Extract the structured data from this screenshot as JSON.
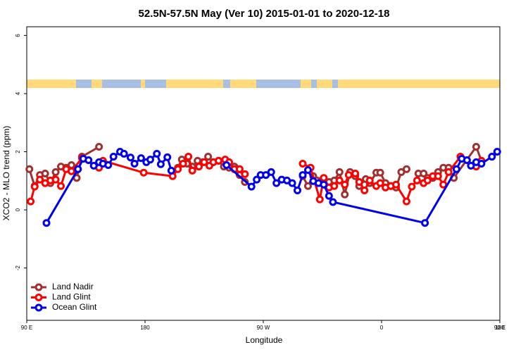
{
  "chart_data": {
    "type": "line",
    "title": "52.5N-57.5N May (Ver 10)   2015-01-01 to 2020-12-18",
    "xlabel": "Longitude",
    "ylabel": "XCO2 - MLO trend (ppm)",
    "xlim": [
      90,
      450
    ],
    "ylim": [
      -3.8,
      6.3
    ],
    "xticks": [
      {
        "value": 90,
        "label": "90 E"
      },
      180,
      {
        "value": 270,
        "label": "90 W"
      },
      {
        "value": 360,
        "label": "0"
      },
      {
        "value": 450,
        "label": "90 E"
      },
      {
        "value": 540,
        "label": "180"
      }
    ],
    "yticks": [
      -2,
      0,
      2,
      4,
      6
    ],
    "legend": "bottom-left",
    "series": [
      {
        "name": "Land Nadir",
        "color": "#a03030",
        "x": [
          92,
          96,
          100,
          104,
          108,
          112,
          116,
          120,
          124,
          128,
          132,
          145,
          175,
          205,
          208,
          212,
          216,
          220,
          224,
          228,
          232,
          236,
          240,
          244,
          248,
          252,
          256,
          280,
          300,
          304,
          308,
          320,
          324,
          328,
          332,
          336,
          340,
          343,
          348,
          351,
          356,
          359,
          363,
          367,
          371,
          375,
          379,
          384,
          388,
          392,
          395,
          399,
          403,
          407,
          411,
          415,
          432,
          436
        ],
        "values": [
          1.4,
          0.82,
          1.2,
          1.25,
          0.92,
          1.3,
          1.49,
          1.45,
          1.54,
          1.1,
          1.83,
          2.17,
          null,
          1.45,
          1.73,
          1.59,
          1.49,
          1.69,
          1.64,
          1.83,
          1.64,
          1.69,
          1.49,
          1.45,
          1.49,
          1.2,
          0.96,
          null,
          1.16,
          0.82,
          1.16,
          0.96,
          1.01,
          1.3,
          0.53,
          1.3,
          1.16,
          0.82,
          1.06,
          0.92,
          1.28,
          1.28,
          0.92,
          0.82,
          0.77,
          1.3,
          1.4,
          null,
          1.25,
          1.25,
          1.1,
          1.1,
          1.3,
          1.45,
          1.45,
          1.1,
          2.17,
          1.69
        ]
      },
      {
        "name": "Land Glint",
        "color": "#ff0000",
        "x": [
          93,
          96,
          100,
          104,
          108,
          112,
          116,
          120,
          124,
          132,
          145,
          148,
          179,
          201,
          205,
          209,
          213,
          216,
          221,
          225,
          229,
          232,
          236,
          241,
          244,
          248,
          252,
          256,
          280,
          300,
          306,
          313,
          316,
          320,
          324,
          328,
          332,
          335,
          340,
          343,
          347,
          351,
          356,
          359,
          363,
          367,
          371,
          379,
          383,
          387,
          392,
          395,
          399,
          403,
          407,
          411,
          420,
          432,
          436
        ],
        "values": [
          0.29,
          0.8,
          1.04,
          0.92,
          1.01,
          1.04,
          0.82,
          1.4,
          1.33,
          1.78,
          1.45,
          1.69,
          1.28,
          1.16,
          1.4,
          1.59,
          1.83,
          1.35,
          1.49,
          1.64,
          1.52,
          1.64,
          1.69,
          1.73,
          1.64,
          1.4,
          1.4,
          1.23,
          null,
          1.59,
          1.45,
          0.36,
          1.1,
          0.77,
          0.82,
          1.01,
          0.87,
          1.2,
          1.25,
          0.96,
          0.67,
          1.01,
          0.82,
          0.92,
          0.77,
          0.82,
          0.87,
          0.29,
          0.8,
          1.01,
          0.92,
          1.01,
          1.16,
          1.16,
          0.87,
          1.3,
          1.83,
          1.49,
          1.69
        ]
      },
      {
        "name": "Ocean Glint",
        "color": "#0000ee",
        "x": [
          105,
          129,
          133,
          137,
          141,
          145,
          148,
          152,
          156,
          161,
          164,
          169,
          172,
          177,
          181,
          184,
          189,
          192,
          197,
          200,
          228,
          242,
          261,
          265,
          268,
          272,
          276,
          280,
          284,
          288,
          292,
          296,
          300,
          304,
          308,
          312,
          316,
          320,
          323,
          393,
          417,
          421,
          425,
          428,
          432,
          436,
          444,
          448
        ],
        "values": [
          -0.45,
          1.4,
          1.76,
          1.71,
          1.52,
          1.64,
          1.59,
          1.54,
          1.83,
          2.0,
          1.93,
          1.8,
          1.59,
          1.78,
          1.64,
          1.73,
          1.93,
          1.57,
          1.81,
          1.35,
          null,
          1.54,
          0.8,
          1.04,
          1.2,
          1.2,
          1.3,
          0.92,
          1.04,
          1.01,
          0.92,
          0.67,
          1.2,
          1.37,
          0.99,
          0.92,
          0.87,
          0.48,
          0.27,
          -0.45,
          1.4,
          1.76,
          1.71,
          1.52,
          1.64,
          1.59,
          1.83,
          2.0
        ]
      }
    ]
  }
}
